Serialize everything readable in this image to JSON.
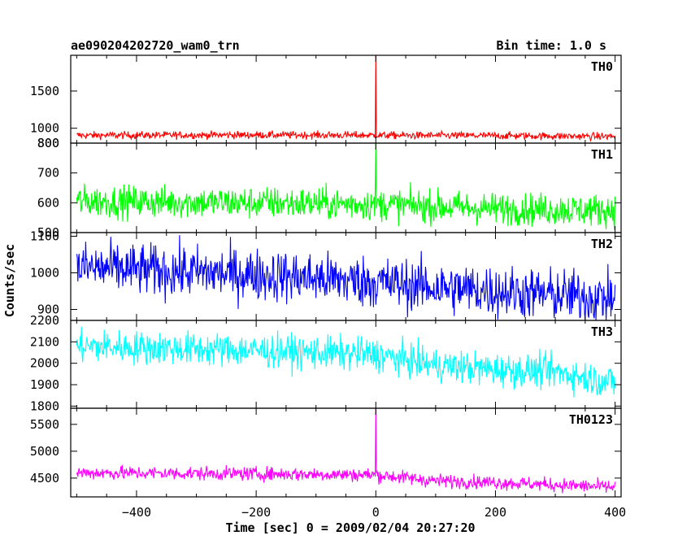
{
  "chart_data": {
    "type": "line",
    "title_left": "ae090204202720_wam0_trn",
    "title_right": "Bin time: 1.0 s",
    "xlabel": "Time [sec] 0 = 2009/02/04 20:27:20",
    "ylabel": "Counts/sec",
    "xlim": [
      -510,
      410
    ],
    "x_ticks": [
      -400,
      -200,
      0,
      200,
      400
    ],
    "x_tick_labels": [
      "−400",
      "−200",
      "0",
      "200",
      "400"
    ],
    "x_data_range": [
      -500,
      400
    ],
    "panels": [
      {
        "name": "TH0",
        "color": "#ff0000",
        "ylim": [
          800,
          1980
        ],
        "y_ticks": [
          800,
          1000,
          1500
        ],
        "profile": [
          [
            -500,
            905
          ],
          [
            -200,
            910
          ],
          [
            0,
            905
          ],
          [
            200,
            900
          ],
          [
            400,
            890
          ]
        ],
        "noise": 35,
        "spike": {
          "x": 0,
          "y": 1980
        }
      },
      {
        "name": "TH1",
        "color": "#00ff00",
        "ylim": [
          500,
          800
        ],
        "y_ticks": [
          500,
          600,
          700,
          800
        ],
        "profile": [
          [
            -500,
            605
          ],
          [
            -200,
            600
          ],
          [
            0,
            595
          ],
          [
            200,
            580
          ],
          [
            400,
            575
          ]
        ],
        "noise": 38,
        "spike": {
          "x": 0,
          "y": 800
        }
      },
      {
        "name": "TH2",
        "color": "#0000ff",
        "ylim": [
          870,
          1110
        ],
        "y_ticks": [
          900,
          1000,
          1100
        ],
        "profile": [
          [
            -500,
            1015
          ],
          [
            -200,
            995
          ],
          [
            0,
            975
          ],
          [
            100,
            960
          ],
          [
            200,
            950
          ],
          [
            400,
            930
          ]
        ],
        "noise": 50
      },
      {
        "name": "TH3",
        "color": "#00ffff",
        "ylim": [
          1790,
          2200
        ],
        "y_ticks": [
          1800,
          1900,
          2000,
          2100,
          2200
        ],
        "profile": [
          [
            -500,
            2080
          ],
          [
            -200,
            2060
          ],
          [
            0,
            2040
          ],
          [
            100,
            1990
          ],
          [
            200,
            1970
          ],
          [
            300,
            1960
          ],
          [
            400,
            1910
          ]
        ],
        "noise": 55
      },
      {
        "name": "TH0123",
        "color": "#ff00ff",
        "ylim": [
          4150,
          5800
        ],
        "y_ticks": [
          4500,
          5000,
          5500
        ],
        "profile": [
          [
            -500,
            4600
          ],
          [
            -200,
            4580
          ],
          [
            0,
            4560
          ],
          [
            100,
            4450
          ],
          [
            200,
            4420
          ],
          [
            400,
            4330
          ]
        ],
        "noise": 90,
        "spike": {
          "x": 0,
          "y": 5800
        }
      }
    ]
  }
}
